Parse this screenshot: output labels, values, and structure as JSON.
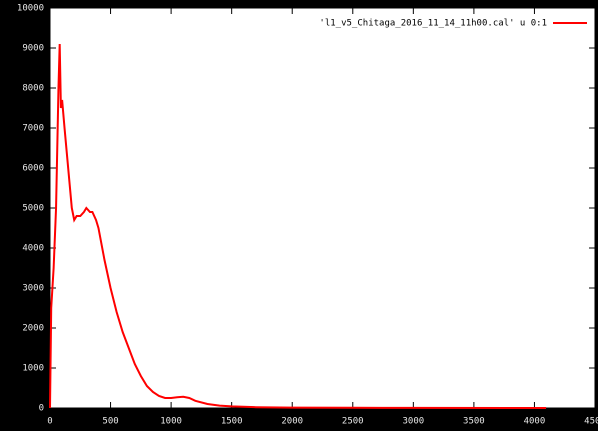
{
  "chart_data": {
    "type": "line",
    "x": [
      0,
      10,
      30,
      50,
      70,
      80,
      90,
      100,
      120,
      150,
      180,
      200,
      220,
      250,
      280,
      300,
      330,
      350,
      380,
      400,
      450,
      500,
      550,
      600,
      650,
      700,
      750,
      800,
      850,
      900,
      950,
      1000,
      1050,
      1100,
      1150,
      1200,
      1300,
      1400,
      1500,
      1700,
      2000,
      2500,
      3000,
      4096
    ],
    "series": [
      {
        "name": "'l1_v5_Chitaga_2016_11_14_11h00.cal' u 0:1",
        "color": "#ff0000",
        "values": [
          0,
          2500,
          3500,
          5000,
          8000,
          9100,
          7500,
          7700,
          7000,
          6000,
          5000,
          4700,
          4800,
          4800,
          4900,
          5000,
          4900,
          4900,
          4700,
          4500,
          3700,
          3000,
          2400,
          1900,
          1500,
          1100,
          800,
          550,
          400,
          300,
          250,
          250,
          270,
          280,
          250,
          180,
          100,
          60,
          40,
          20,
          10,
          5,
          3,
          0
        ]
      }
    ],
    "xlim": [
      0,
      4500
    ],
    "xticks": [
      0,
      500,
      1000,
      1500,
      2000,
      2500,
      3000,
      3500,
      4000,
      4500
    ],
    "ylim": [
      0,
      10000
    ],
    "yticks": [
      0,
      1000,
      2000,
      3000,
      4000,
      5000,
      6000,
      7000,
      8000,
      9000,
      10000
    ],
    "grid": false,
    "legend": "top-right"
  }
}
